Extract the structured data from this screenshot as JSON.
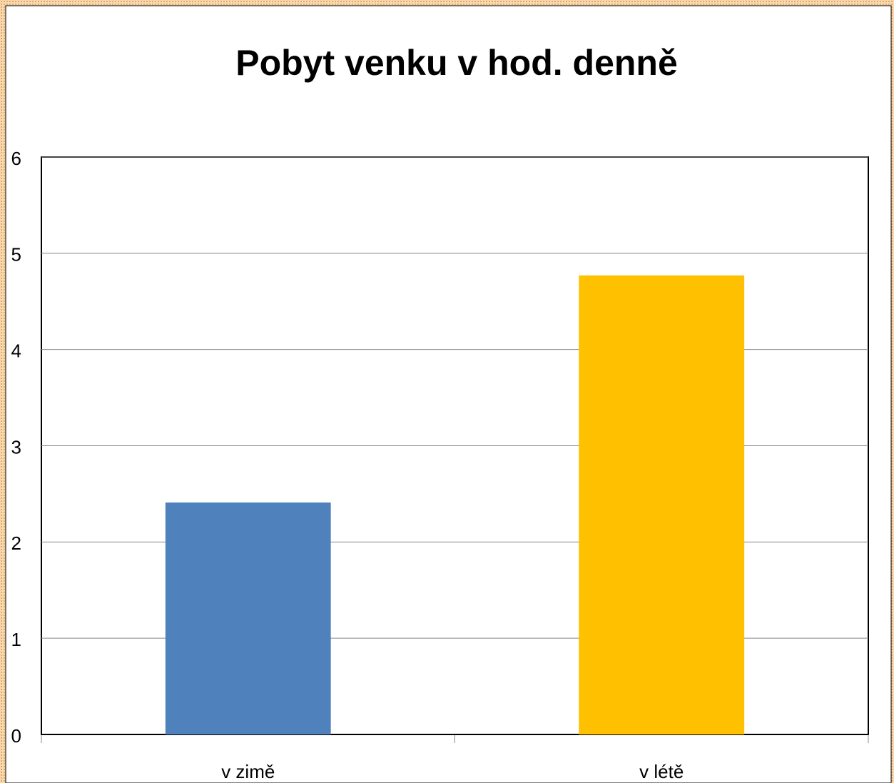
{
  "chart_data": {
    "type": "bar",
    "title": "Pobyt venku v hod. denně",
    "categories": [
      "v zimě",
      "v létě"
    ],
    "values": [
      2.41,
      4.77
    ],
    "colors": [
      "#4f81bd",
      "#ffc000"
    ],
    "ylim": [
      0,
      6
    ],
    "yticks": [
      0,
      1,
      2,
      3,
      4,
      5,
      6
    ],
    "grid": true
  }
}
